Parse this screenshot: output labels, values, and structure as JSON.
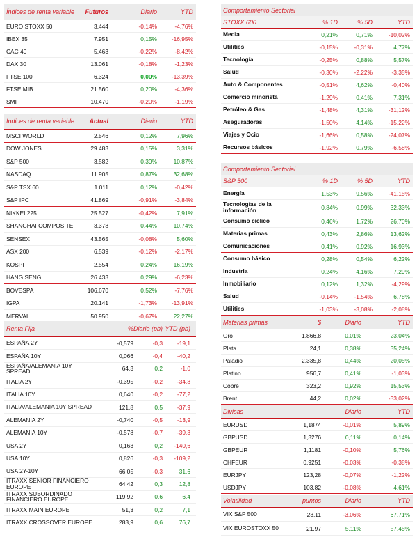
{
  "colors": {
    "accent": "#d4202a",
    "positive": "#1c8c26",
    "header_bg": "#ebebeb"
  },
  "futuros": {
    "header": [
      "Índices de renta variable",
      "Futuros",
      "Diario",
      "YTD"
    ],
    "rows": [
      [
        "EURO STOXX 50",
        "3.444",
        "-0,14%",
        "-4,76%"
      ],
      [
        "IBEX 35",
        "7.951",
        "0,15%",
        "-16,95%"
      ],
      [
        "CAC 40",
        "5.463",
        "-0,22%",
        "-8,42%"
      ],
      [
        "DAX 30",
        "13.061",
        "-0,18%",
        "-1,23%"
      ],
      [
        "FTSE 100",
        "6.324",
        "0,00%",
        "-13,39%"
      ],
      [
        "FTSE MIB",
        "21.560",
        "0,20%",
        "-4,36%"
      ],
      [
        "SMI",
        "10.470",
        "-0,20%",
        "-1,19%"
      ]
    ]
  },
  "actual": {
    "header": [
      "Índices de renta variable",
      "Actual",
      "Diario",
      "YTD"
    ],
    "rows": [
      [
        "MSCI WORLD",
        "2.546",
        "0,12%",
        "7,96%"
      ],
      [
        "DOW JONES",
        "29.483",
        "0,15%",
        "3,31%"
      ],
      [
        "S&P 500",
        "3.582",
        "0,39%",
        "10,87%"
      ],
      [
        "NASDAQ",
        "11.905",
        "0,87%",
        "32,68%"
      ],
      [
        "S&P TSX 60",
        "1.011",
        "0,12%",
        "-0,42%"
      ],
      [
        "S&P IPC",
        "41.869",
        "-0,91%",
        "-3,84%"
      ],
      [
        "NIKKEI 225",
        "25.527",
        "-0,42%",
        "7,91%"
      ],
      [
        "SHANGHAI COMPOSITE",
        "3.378",
        "0,44%",
        "10,74%"
      ],
      [
        "SENSEX",
        "43.565",
        "-0,08%",
        "5,60%"
      ],
      [
        "ASX 200",
        "6.539",
        "-0,12%",
        "-2,17%"
      ],
      [
        "KOSPI",
        "2.554",
        "0,24%",
        "16,19%"
      ],
      [
        "HANG SENG",
        "26.433",
        "0,29%",
        "-6,23%"
      ],
      [
        "BOVESPA",
        "106.670",
        "0,52%",
        "-7,76%"
      ],
      [
        "IGPA",
        "20.141",
        "-1,73%",
        "-13,91%"
      ],
      [
        "MERVAL",
        "50.950",
        "-0,67%",
        "22,27%"
      ]
    ]
  },
  "renta_fija": {
    "header": [
      "Renta Fija",
      "%",
      "Diario (pb)",
      "YTD (pb)"
    ],
    "rows": [
      [
        "ESPAÑA 2Y",
        "-0,579",
        "-0,3",
        "-19,1"
      ],
      [
        "ESPAÑA 10Y",
        "0,066",
        "-0,4",
        "-40,2"
      ],
      [
        "ESPAÑA/ALEMANIA 10Y SPREAD",
        "64,3",
        "0,2",
        "-1,0"
      ],
      [
        "ITALIA 2Y",
        "-0,395",
        "-0,2",
        "-34,8"
      ],
      [
        "ITALIA 10Y",
        "0,640",
        "-0,2",
        "-77,2"
      ],
      [
        "ITALIA/ALEMANIA 10Y SPREAD",
        "121,8",
        "0,5",
        "-37,9"
      ],
      [
        "ALEMANIA 2Y",
        "-0,740",
        "-0,5",
        "-13,9"
      ],
      [
        "ALEMANIA 10Y",
        "-0,578",
        "-0,7",
        "-39,3"
      ],
      [
        "USA 2Y",
        "0,163",
        "0,2",
        "-140,6"
      ],
      [
        "USA 10Y",
        "0,826",
        "-0,3",
        "-109,2"
      ],
      [
        "USA 2Y-10Y",
        "66,05",
        "-0,3",
        "31,6"
      ],
      [
        "ITRAXX SENIOR FINANCIERO EUROPE",
        "64,42",
        "0,3",
        "12,8"
      ],
      [
        "ITRAXX SUBORDINADO FINANCIERO EUROPE",
        "119,92",
        "0,6",
        "6,4"
      ],
      [
        "ITRAXX MAIN EUROPE",
        "51,3",
        "0,2",
        "7,1"
      ],
      [
        "ITRAXX CROSSOVER EUROPE",
        "283,9",
        "0,6",
        "76,7"
      ]
    ]
  },
  "stoxx": {
    "title": "Comportamiento Sectorial",
    "header": [
      "STOXX 600",
      "% 1D",
      "% 5D",
      "YTD"
    ],
    "rows": [
      [
        "Media",
        "0,21%",
        "0,71%",
        "-10,02%"
      ],
      [
        "Utilities",
        "-0,15%",
        "-0,31%",
        "4,77%"
      ],
      [
        "Tecnología",
        "-0,25%",
        "0,88%",
        "5,57%"
      ],
      [
        "Salud",
        "-0,30%",
        "-2,22%",
        "-3,35%"
      ],
      [
        "Auto & Componentes",
        "-0,51%",
        "4,62%",
        "-0,40%"
      ],
      [
        "Comercio minorista",
        "-1,29%",
        "0,41%",
        "7,31%"
      ],
      [
        "Petróleo & Gas",
        "-1,48%",
        "4,31%",
        "-31,12%"
      ],
      [
        "Aseguradoras",
        "-1,50%",
        "4,14%",
        "-15,22%"
      ],
      [
        "Viajes y Ocio",
        "-1,66%",
        "0,58%",
        "-24,07%"
      ],
      [
        "Recursos básicos",
        "-1,92%",
        "0,79%",
        "-6,58%"
      ]
    ]
  },
  "sp500": {
    "title": "Comportamiento Sectorial",
    "header": [
      "S&P 500",
      "% 1D",
      "% 5D",
      "YTD"
    ],
    "rows": [
      [
        "Energía",
        "1,53%",
        "9,56%",
        "-41,15%"
      ],
      [
        "Tecnologías de la información",
        "0,84%",
        "0,99%",
        "32,33%"
      ],
      [
        "Consumo cíclico",
        "0,46%",
        "1,72%",
        "26,70%"
      ],
      [
        "Materias primas",
        "0,43%",
        "2,86%",
        "13,62%"
      ],
      [
        "Comunicaciones",
        "0,41%",
        "0,92%",
        "16,93%"
      ],
      [
        "Consumo básico",
        "0,28%",
        "0,54%",
        "6,22%"
      ],
      [
        "Industria",
        "0,24%",
        "4,16%",
        "7,29%"
      ],
      [
        "Inmobiliario",
        "0,12%",
        "1,32%",
        "-4,29%"
      ],
      [
        "Salud",
        "-0,14%",
        "-1,54%",
        "6,78%"
      ],
      [
        "Utilities",
        "-1,03%",
        "-3,08%",
        "-2,08%"
      ]
    ]
  },
  "materias": {
    "header": [
      "Materias primas",
      "$",
      "Diario",
      "YTD"
    ],
    "rows": [
      [
        "Oro",
        "1.866,8",
        "0,01%",
        "23,04%"
      ],
      [
        "Plata",
        "24,1",
        "0,38%",
        "35,24%"
      ],
      [
        "Paladio",
        "2.335,8",
        "0,44%",
        "20,05%"
      ],
      [
        "Platino",
        "956,7",
        "0,41%",
        "-1,03%"
      ],
      [
        "Cobre",
        "323,2",
        "0,92%",
        "15,53%"
      ],
      [
        "Brent",
        "44,2",
        "0,02%",
        "-33,02%"
      ]
    ]
  },
  "divisas": {
    "header": [
      "Divisas",
      "",
      "Diario",
      "YTD"
    ],
    "rows": [
      [
        "EURUSD",
        "1,1874",
        "-0,01%",
        "5,89%"
      ],
      [
        "GBPUSD",
        "1,3276",
        "0,11%",
        "0,14%"
      ],
      [
        "GBPEUR",
        "1,1181",
        "-0,10%",
        "5,76%"
      ],
      [
        "CHFEUR",
        "0,9251",
        "-0,03%",
        "-0,38%"
      ],
      [
        "EURJPY",
        "123,28",
        "-0,07%",
        "-1,22%"
      ],
      [
        "USDJPY",
        "103,82",
        "-0,08%",
        "4,61%"
      ]
    ]
  },
  "volatilidad": {
    "header": [
      "Volatilidad",
      "puntos",
      "Diario",
      "YTD"
    ],
    "rows": [
      [
        "VIX S&P 500",
        "23,11",
        "-3,06%",
        "67,71%"
      ],
      [
        "VIX EUROSTOXX 50",
        "21,97",
        "5,11%",
        "57,45%"
      ]
    ]
  }
}
